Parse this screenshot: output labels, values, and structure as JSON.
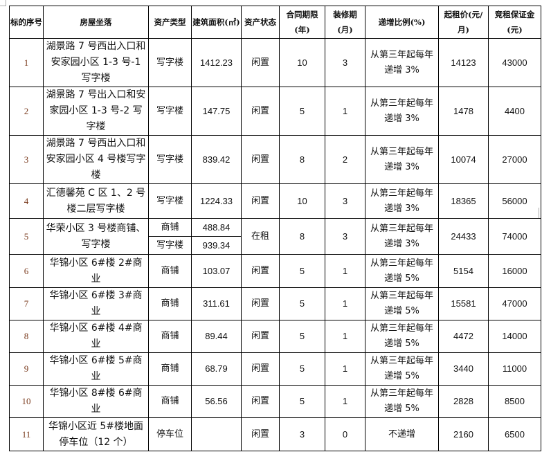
{
  "headers": [
    "标的序号",
    "房屋坐落",
    "资产类型",
    "建筑面积(㎡)",
    "资产状态",
    "合同期限(年)",
    "装修期(月)",
    "递增比例(%)",
    "起租价(元/月)",
    "竞租保证金(元)"
  ],
  "rows": [
    {
      "no": "1",
      "addr": "湖景路 7 号西出入口和安家园小区 1-3 号-1 写字楼",
      "type": "写字楼",
      "area": "1412.23",
      "status": "闲置",
      "term": "10",
      "decor": "3",
      "incr": "从第三年起每年递增 3%",
      "price": "14123",
      "deposit": "43000"
    },
    {
      "no": "2",
      "addr": "湖景路 7 号出入口和安家园小区 1-3 号-2 写字楼",
      "type": "写字楼",
      "area": "147.75",
      "status": "闲置",
      "term": "5",
      "decor": "1",
      "incr": "从第三年起每年递增 3%",
      "price": "1478",
      "deposit": "4400"
    },
    {
      "no": "3",
      "addr": "湖景路 7 号西出入口和安家园小区 4 号楼写字楼",
      "type": "写字楼",
      "area": "839.42",
      "status": "闲置",
      "term": "8",
      "decor": "2",
      "incr": "从第三年起每年递增 3%",
      "price": "10074",
      "deposit": "27000"
    },
    {
      "no": "4",
      "addr": "汇德馨苑 C 区 1、2 号楼二层写字楼",
      "type": "写字楼",
      "area": "1224.33",
      "status": "闲置",
      "term": "10",
      "decor": "3",
      "incr": "从第三年起每年递增 3%",
      "price": "18365",
      "deposit": "56000"
    },
    {
      "no": "5",
      "addr": "华荣小区 3 号楼商铺、写字楼",
      "type": "商铺",
      "area": "488.84",
      "type2": "写字楼",
      "area2": "939.34",
      "status": "在租",
      "term": "8",
      "decor": "3",
      "incr": "从第三年起每年递增 3%",
      "price": "24433",
      "deposit": "74000"
    },
    {
      "no": "6",
      "addr": "华锦小区 6#楼 2#商业",
      "type": "商铺",
      "area": "103.07",
      "status": "闲置",
      "term": "5",
      "decor": "1",
      "incr": "从第三年起每年递增 5%",
      "price": "5154",
      "deposit": "16000"
    },
    {
      "no": "7",
      "addr": "华锦小区 6#楼 3#商业",
      "type": "商铺",
      "area": "311.61",
      "status": "闲置",
      "term": "5",
      "decor": "1",
      "incr": "从第三年起每年递增 5%",
      "price": "15581",
      "deposit": "47000"
    },
    {
      "no": "8",
      "addr": "华锦小区 6#楼 4#商业",
      "type": "商铺",
      "area": "89.44",
      "status": "闲置",
      "term": "5",
      "decor": "1",
      "incr": "从第三年起每年递增 5%",
      "price": "4472",
      "deposit": "14000"
    },
    {
      "no": "9",
      "addr": "华锦小区 6#楼 5#商业",
      "type": "商铺",
      "area": "68.79",
      "status": "闲置",
      "term": "5",
      "decor": "1",
      "incr": "从第三年起每年递增 5%",
      "price": "3440",
      "deposit": "11000"
    },
    {
      "no": "10",
      "addr": "华锦小区 8#楼 6#商业",
      "type": "商铺",
      "area": "56.56",
      "status": "闲置",
      "term": "5",
      "decor": "1",
      "incr": "从第三年起每年递增 5%",
      "price": "2828",
      "deposit": "8500"
    },
    {
      "no": "11",
      "addr": "华锦小区近 5#楼地面停车位（12 个）",
      "type": "停车位",
      "area": "",
      "status": "闲置",
      "term": "3",
      "decor": "0",
      "incr": "不递增",
      "price": "2160",
      "deposit": "6500"
    }
  ]
}
